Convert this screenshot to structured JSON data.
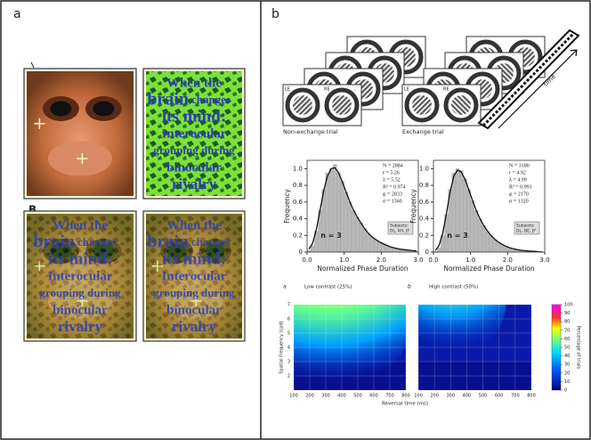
{
  "panel_a": {
    "label": "a",
    "sublabel": "B",
    "tile_text": [
      "When the",
      "brain",
      "changes",
      "its mind:",
      "Interocular",
      "grouping during",
      "binocular",
      "rivalry"
    ]
  },
  "panel_b": {
    "label": "b",
    "trials": {
      "left_eye": "LE",
      "right_eye": "RE",
      "non_exchange": "Non-exchange trial",
      "exchange": "Exchange trial",
      "time": "time"
    },
    "histograms": [
      {
        "type": "histogram",
        "xlabel": "Normalized Phase Duration",
        "ylabel": "Frequency",
        "xlim": [
          0,
          3
        ],
        "ylim": [
          0,
          1.1
        ],
        "xticks": [
          {
            "value": 0,
            "label": "0.0"
          },
          {
            "value": 1,
            "label": "1.0"
          },
          {
            "value": 2,
            "label": "2.0"
          },
          {
            "value": 3,
            "label": "3.0"
          }
        ],
        "yticks": [
          0,
          0.2,
          0.4,
          0.6,
          0.8,
          {
            "value": 1,
            "label": "1.0"
          }
        ],
        "bins": [
          0,
          0.1,
          0.2,
          0.3,
          0.4,
          0.5,
          0.6,
          0.7,
          0.8,
          0.9,
          1,
          1.1,
          1.2,
          1.3,
          1.4,
          1.5,
          1.6,
          1.7,
          1.8,
          1.9,
          2,
          2.1,
          2.2,
          2.3,
          2.4,
          2.5,
          2.6,
          2.7,
          2.8,
          2.9,
          3
        ],
        "values": [
          0.02,
          0.08,
          0.25,
          0.5,
          0.75,
          0.95,
          1.0,
          1.05,
          0.95,
          0.85,
          0.72,
          0.6,
          0.5,
          0.42,
          0.35,
          0.28,
          0.22,
          0.18,
          0.15,
          0.12,
          0.1,
          0.08,
          0.06,
          0.05,
          0.04,
          0.03,
          0.03,
          0.02,
          0.02,
          0.01
        ],
        "stats": [
          "N = 2884",
          "r = 5.26",
          "λ = 5.52",
          "R² = 0.974",
          "φ = 2833",
          "σ = 1560"
        ],
        "n_label": "n = 3",
        "subjects_title": "Subjects:",
        "subjects": "DL, KH, JF"
      },
      {
        "type": "histogram",
        "xlabel": "Normalized Phase Duration",
        "ylabel": "Frequency",
        "xlim": [
          0,
          3
        ],
        "ylim": [
          0,
          1.1
        ],
        "xticks": [
          {
            "value": 0,
            "label": "0.0"
          },
          {
            "value": 1,
            "label": "1.0"
          },
          {
            "value": 2,
            "label": "2.0"
          },
          {
            "value": 3,
            "label": "3.0"
          }
        ],
        "yticks": [
          0,
          0.2,
          0.4,
          0.6,
          0.8,
          {
            "value": 1,
            "label": "1.0"
          }
        ],
        "bins": [
          0,
          0.1,
          0.2,
          0.3,
          0.4,
          0.5,
          0.6,
          0.7,
          0.8,
          0.9,
          1,
          1.1,
          1.2,
          1.3,
          1.4,
          1.5,
          1.6,
          1.7,
          1.8,
          1.9,
          2,
          2.1,
          2.2,
          2.3,
          2.4,
          2.5,
          2.6,
          2.7,
          2.8,
          2.9,
          3
        ],
        "values": [
          0.01,
          0.05,
          0.2,
          0.45,
          0.75,
          0.95,
          1.0,
          0.98,
          0.88,
          0.75,
          0.62,
          0.5,
          0.4,
          0.32,
          0.25,
          0.2,
          0.15,
          0.12,
          0.09,
          0.07,
          0.05,
          0.04,
          0.03,
          0.02,
          0.02,
          0.01,
          0.01,
          0.01,
          0,
          0
        ],
        "stats": [
          "N = 3180",
          "r = 4.92",
          "λ = 4.99",
          "R² = 0.991",
          "φ = 2170",
          "σ = 1320"
        ],
        "n_label": "n = 3",
        "subjects_title": "Subjects:",
        "subjects": "DL, DE, JF"
      }
    ],
    "heatmaps": {
      "panels": [
        {
          "letter": "a",
          "title": "Low contrast (25%)"
        },
        {
          "letter": "b",
          "title": "High contrast (50%)"
        }
      ],
      "xlabel": "Reversal time (ms)",
      "ylabel": "Spatial Frequency (cpd)",
      "xlim": [
        100,
        800
      ],
      "xticks": [
        100,
        200,
        300,
        400,
        500,
        600,
        700,
        800
      ],
      "ylim": [
        1,
        7
      ],
      "yticks": [
        2,
        3,
        4,
        5,
        6,
        7
      ],
      "colorbar": {
        "label": "Percentage of trials",
        "lim": [
          0,
          100
        ],
        "ticks": [
          0,
          10,
          20,
          30,
          40,
          50,
          60,
          70,
          80,
          90,
          100
        ]
      }
    }
  }
}
